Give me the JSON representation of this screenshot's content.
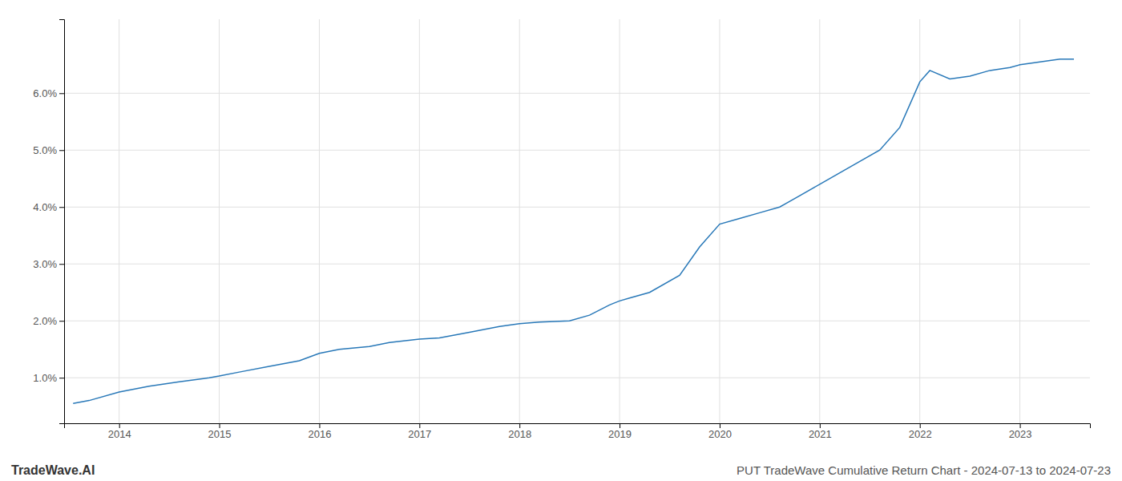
{
  "chart_data": {
    "type": "line",
    "title": "PUT TradeWave Cumulative Return Chart - 2024-07-13 to 2024-07-23",
    "annotations": [
      "TradeWave.AI"
    ],
    "x": [
      2013.54,
      2013.7,
      2014.0,
      2014.3,
      2014.6,
      2014.9,
      2015.0,
      2015.2,
      2015.5,
      2015.8,
      2016.0,
      2016.2,
      2016.5,
      2016.7,
      2017.0,
      2017.2,
      2017.5,
      2017.8,
      2018.0,
      2018.2,
      2018.5,
      2018.7,
      2018.9,
      2019.0,
      2019.1,
      2019.3,
      2019.6,
      2019.8,
      2020.0,
      2020.2,
      2020.4,
      2020.6,
      2020.8,
      2021.0,
      2021.2,
      2021.4,
      2021.6,
      2021.8,
      2022.0,
      2022.05,
      2022.1,
      2022.3,
      2022.5,
      2022.7,
      2022.9,
      2023.0,
      2023.2,
      2023.4,
      2023.54
    ],
    "values": [
      0.0055,
      0.006,
      0.0075,
      0.0085,
      0.0093,
      0.01,
      0.0103,
      0.011,
      0.012,
      0.013,
      0.0143,
      0.015,
      0.0155,
      0.0162,
      0.0168,
      0.017,
      0.018,
      0.019,
      0.0195,
      0.0198,
      0.02,
      0.021,
      0.0228,
      0.0235,
      0.024,
      0.025,
      0.028,
      0.033,
      0.037,
      0.038,
      0.039,
      0.04,
      0.042,
      0.044,
      0.046,
      0.048,
      0.05,
      0.054,
      0.062,
      0.063,
      0.064,
      0.0625,
      0.063,
      0.064,
      0.0645,
      0.065,
      0.0655,
      0.066,
      0.066
    ],
    "color": "#2878b8",
    "xlim": [
      2013.45,
      2023.7
    ],
    "xticks": [
      2014,
      2015,
      2016,
      2017,
      2018,
      2019,
      2020,
      2021,
      2022,
      2023
    ],
    "ylim": [
      0.002,
      0.073
    ],
    "yticks": [
      {
        "value": 0.01,
        "label": "1.0%"
      },
      {
        "value": 0.02,
        "label": "2.0%"
      },
      {
        "value": 0.03,
        "label": "3.0%"
      },
      {
        "value": 0.04,
        "label": "4.0%"
      },
      {
        "value": 0.05,
        "label": "5.0%"
      },
      {
        "value": 0.06,
        "label": "6.0%"
      }
    ],
    "grid": true
  }
}
